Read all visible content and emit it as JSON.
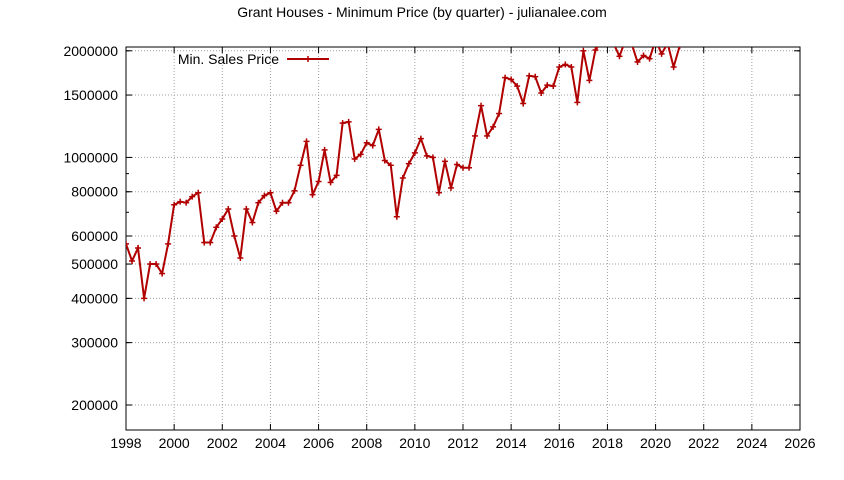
{
  "chart_data": {
    "type": "line",
    "title": "Grant Houses - Minimum Price (by quarter) - julianalee.com",
    "xlabel": "",
    "ylabel": "",
    "xlim": [
      1998,
      2026
    ],
    "ylim": [
      170000,
      2050000
    ],
    "yscale": "log",
    "grid": true,
    "legend_position": "top-left",
    "x_ticks": [
      "1998",
      "2000",
      "2002",
      "2004",
      "2006",
      "2008",
      "2010",
      "2012",
      "2014",
      "2016",
      "2018",
      "2020",
      "2022",
      "2024",
      "2026"
    ],
    "y_ticks": [
      {
        "value": 200000,
        "label": "200000"
      },
      {
        "value": 300000,
        "label": "300000"
      },
      {
        "value": 400000,
        "label": "400000"
      },
      {
        "value": 500000,
        "label": "500000"
      },
      {
        "value": 600000,
        "label": "600000"
      },
      {
        "value": 800000,
        "label": "800000"
      },
      {
        "value": 1000000,
        "label": "1000000"
      },
      {
        "value": 1500000,
        "label": "1500000"
      },
      {
        "value": 2000000,
        "label": "2000000"
      }
    ],
    "series": [
      {
        "name": "Min. Sales Price",
        "color": "#b00000",
        "points": [
          [
            1998.0,
            570000
          ],
          [
            1998.25,
            510000
          ],
          [
            1998.5,
            555000
          ],
          [
            1998.75,
            400000
          ],
          [
            1999.0,
            500000
          ],
          [
            1999.25,
            500000
          ],
          [
            1999.5,
            470000
          ],
          [
            1999.75,
            570000
          ],
          [
            2000.0,
            735000
          ],
          [
            2000.25,
            750000
          ],
          [
            2000.5,
            745000
          ],
          [
            2000.75,
            775000
          ],
          [
            2001.0,
            795000
          ],
          [
            2001.25,
            575000
          ],
          [
            2001.5,
            575000
          ],
          [
            2001.75,
            635000
          ],
          [
            2002.0,
            670000
          ],
          [
            2002.25,
            715000
          ],
          [
            2002.5,
            600000
          ],
          [
            2002.75,
            520000
          ],
          [
            2003.0,
            715000
          ],
          [
            2003.25,
            655000
          ],
          [
            2003.5,
            745000
          ],
          [
            2003.75,
            780000
          ],
          [
            2004.0,
            795000
          ],
          [
            2004.25,
            705000
          ],
          [
            2004.5,
            745000
          ],
          [
            2004.75,
            745000
          ],
          [
            2005.0,
            805000
          ],
          [
            2005.25,
            950000
          ],
          [
            2005.5,
            1110000
          ],
          [
            2005.75,
            785000
          ],
          [
            2006.0,
            855000
          ],
          [
            2006.25,
            1050000
          ],
          [
            2006.5,
            850000
          ],
          [
            2006.75,
            890000
          ],
          [
            2007.0,
            1250000
          ],
          [
            2007.25,
            1260000
          ],
          [
            2007.5,
            990000
          ],
          [
            2007.75,
            1020000
          ],
          [
            2008.0,
            1100000
          ],
          [
            2008.25,
            1080000
          ],
          [
            2008.5,
            1200000
          ],
          [
            2008.75,
            980000
          ],
          [
            2009.0,
            950000
          ],
          [
            2009.25,
            680000
          ],
          [
            2009.5,
            875000
          ],
          [
            2009.75,
            960000
          ],
          [
            2010.0,
            1030000
          ],
          [
            2010.25,
            1130000
          ],
          [
            2010.5,
            1010000
          ],
          [
            2010.75,
            1000000
          ],
          [
            2011.0,
            795000
          ],
          [
            2011.25,
            975000
          ],
          [
            2011.5,
            820000
          ],
          [
            2011.75,
            955000
          ],
          [
            2012.0,
            935000
          ],
          [
            2012.25,
            935000
          ],
          [
            2012.5,
            1150000
          ],
          [
            2012.75,
            1400000
          ],
          [
            2013.0,
            1150000
          ],
          [
            2013.25,
            1220000
          ],
          [
            2013.5,
            1330000
          ],
          [
            2013.75,
            1680000
          ],
          [
            2014.0,
            1660000
          ],
          [
            2014.25,
            1590000
          ],
          [
            2014.5,
            1420000
          ],
          [
            2014.75,
            1700000
          ],
          [
            2015.0,
            1690000
          ],
          [
            2015.25,
            1520000
          ],
          [
            2015.5,
            1600000
          ],
          [
            2015.75,
            1590000
          ],
          [
            2016.0,
            1800000
          ],
          [
            2016.25,
            1830000
          ],
          [
            2016.5,
            1800000
          ],
          [
            2016.75,
            1430000
          ],
          [
            2017.0,
            2000000
          ],
          [
            2017.25,
            1650000
          ],
          [
            2017.5,
            2010000
          ],
          [
            2017.75,
            2120000
          ],
          [
            2018.25,
            2100000
          ],
          [
            2018.5,
            1930000
          ],
          [
            2018.75,
            2150000
          ],
          [
            2019.0,
            2100000
          ],
          [
            2019.25,
            1860000
          ],
          [
            2019.5,
            1940000
          ],
          [
            2019.75,
            1900000
          ],
          [
            2020.0,
            2150000
          ],
          [
            2020.25,
            1960000
          ],
          [
            2020.5,
            2100000
          ],
          [
            2020.75,
            1800000
          ],
          [
            2021.0,
            2060000
          ]
        ]
      }
    ]
  }
}
